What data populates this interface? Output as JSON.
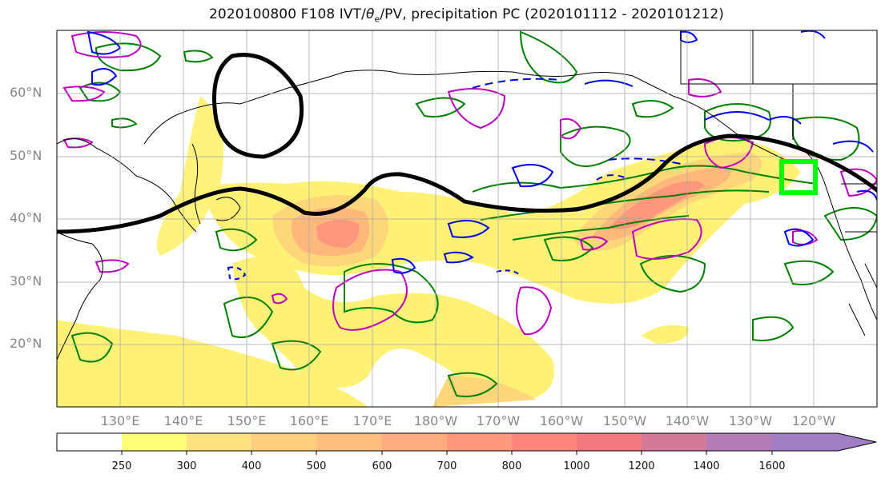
{
  "title": {
    "date": "2020100800 F108 IVT/",
    "theta": "θ",
    "theta_sub": "e",
    "rest": "/PV, precipitation PC (2020101112 - 2020101212)"
  },
  "map": {
    "region": "North Pacific",
    "lat_labels": [
      "60°N",
      "50°N",
      "40°N",
      "30°N",
      "20°N"
    ],
    "lon_labels": [
      "130°E",
      "140°E",
      "150°E",
      "160°E",
      "170°E",
      "180°W",
      "170°W",
      "160°W",
      "150°W",
      "140°W",
      "130°W",
      "120°W"
    ],
    "gridlines": true
  },
  "colorbar": {
    "labels": [
      "250",
      "300",
      "400",
      "500",
      "600",
      "700",
      "800",
      "1000",
      "1200",
      "1400",
      "1600"
    ],
    "colors": [
      "#ffffff",
      "#ffff77",
      "#ffe27d",
      "#ffcf7e",
      "#ffbd7e",
      "#ffab7e",
      "#ff997e",
      "#ff857e",
      "#f0787e",
      "#d47a96",
      "#b37cb8",
      "#a17fc7"
    ],
    "extend": "max"
  },
  "overlays": {
    "ivt_fill_colors": [
      "#fff176",
      "#ffd77a",
      "#ffb87c",
      "#ff977c"
    ],
    "jet_line_color": "#000000",
    "positive_pv_contour_color": "#c000c0",
    "negative_pv_contour_color": "#0000ee",
    "theta_e_contour_color": "#008000",
    "target_box_color": "#00ff00"
  }
}
